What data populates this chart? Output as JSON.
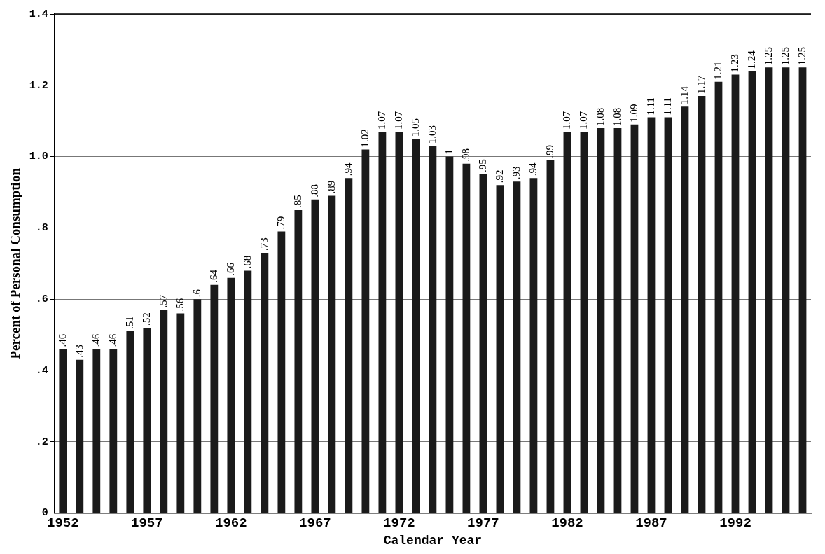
{
  "chart_data": {
    "type": "bar",
    "xlabel": "Calendar Year",
    "ylabel": "Percent of Personal Consumption",
    "categories": [
      "1952",
      null,
      null,
      null,
      null,
      "1957",
      null,
      null,
      null,
      null,
      "1962",
      null,
      null,
      null,
      null,
      "1967",
      null,
      null,
      null,
      null,
      "1972",
      null,
      null,
      null,
      null,
      "1977",
      null,
      null,
      null,
      null,
      "1982",
      null,
      null,
      null,
      null,
      "1987",
      null,
      null,
      null,
      null,
      "1992",
      null,
      null,
      null,
      null
    ],
    "values": [
      0.46,
      0.43,
      0.46,
      0.46,
      0.51,
      0.52,
      0.57,
      0.56,
      0.6,
      0.64,
      0.66,
      0.68,
      0.73,
      0.79,
      0.85,
      0.88,
      0.89,
      0.94,
      1.02,
      1.07,
      1.07,
      1.05,
      1.03,
      1,
      0.98,
      0.95,
      0.92,
      0.93,
      0.94,
      0.99,
      1.07,
      1.07,
      1.08,
      1.08,
      1.09,
      1.11,
      1.11,
      1.14,
      1.17,
      1.21,
      1.23,
      1.24,
      1.25,
      1.25,
      1.25
    ],
    "value_labels": [
      ".46",
      ".43",
      ".46",
      ".46",
      ".51",
      ".52",
      ".57",
      ".56",
      ".6",
      ".64",
      ".66",
      ".68",
      ".73",
      ".79",
      ".85",
      ".88",
      ".89",
      ".94",
      "1.02",
      "1.07",
      "1.07",
      "1.05",
      "1.03",
      "1",
      ".98",
      ".95",
      ".92",
      ".93",
      ".94",
      ".99",
      "1.07",
      "1.07",
      "1.08",
      "1.08",
      "1.09",
      "1.11",
      "1.11",
      "1.14",
      "1.17",
      "1.21",
      "1.23",
      "1.24",
      "1.25",
      "1.25",
      "1.25"
    ],
    "color": "#1a1a1a",
    "ylim": [
      0,
      1.4
    ],
    "yticks": [
      {
        "value": 0,
        "label": "0"
      },
      {
        "value": 0.2,
        "label": ".2"
      },
      {
        "value": 0.4,
        "label": ".4"
      },
      {
        "value": 0.6,
        "label": ".6"
      },
      {
        "value": 0.8,
        "label": ".8"
      },
      {
        "value": 1.0,
        "label": "1.0"
      },
      {
        "value": 1.2,
        "label": "1.2"
      },
      {
        "value": 1.4,
        "label": "1.4"
      }
    ],
    "grid": "y"
  }
}
